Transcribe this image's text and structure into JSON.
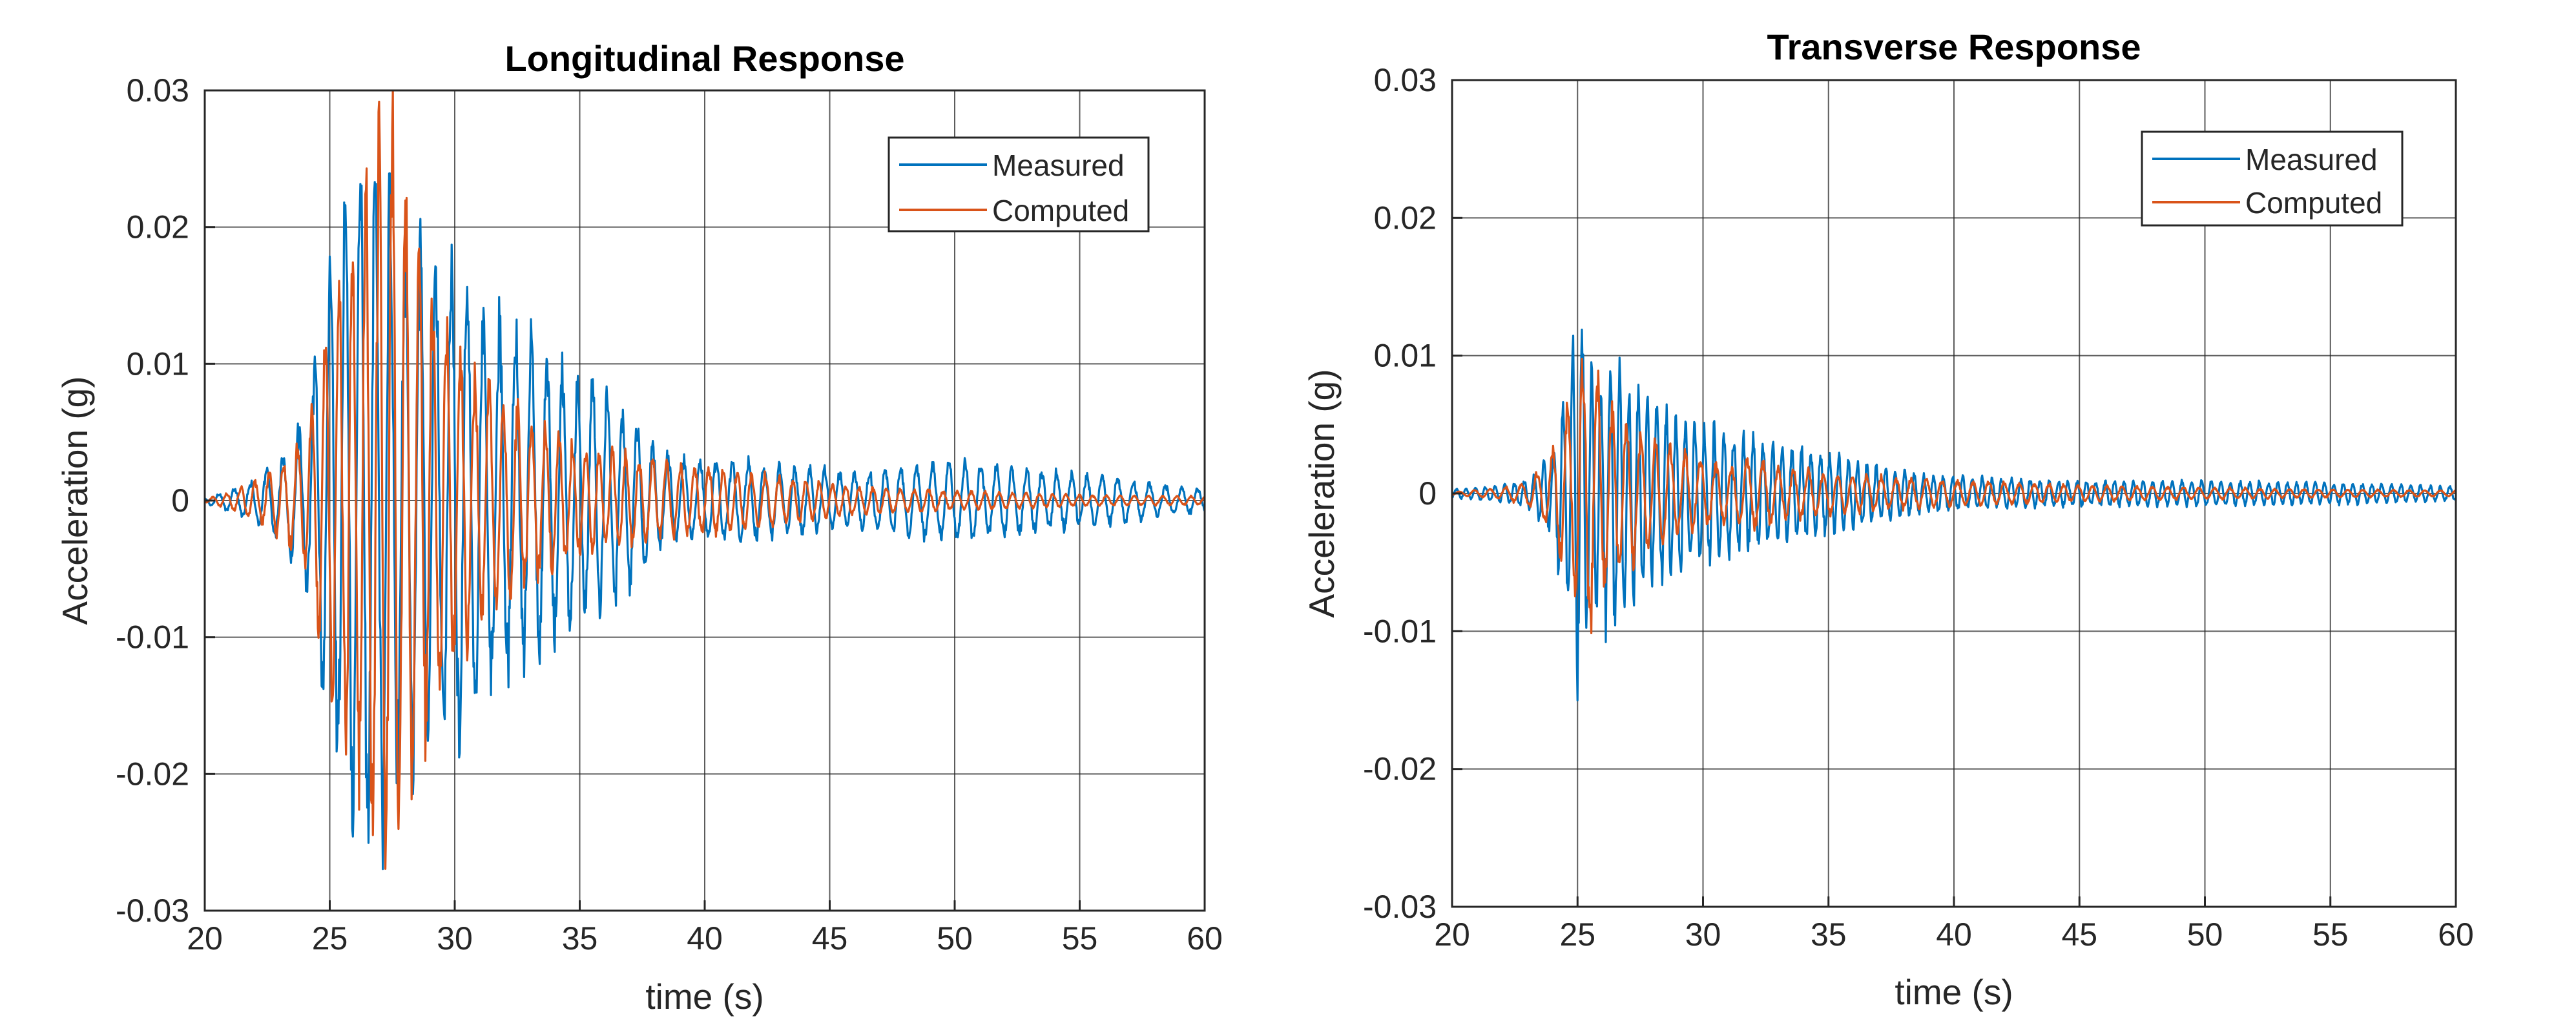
{
  "chart_data": [
    {
      "type": "line",
      "title": "Longitudinal Response",
      "xlabel": "time (s)",
      "ylabel": "Acceleration (g)",
      "xlim": [
        20,
        60
      ],
      "ylim": [
        -0.03,
        0.03
      ],
      "xticks": [
        20,
        25,
        30,
        35,
        40,
        45,
        50,
        55,
        60
      ],
      "yticks": [
        -0.03,
        -0.02,
        -0.01,
        0,
        0.01,
        0.02,
        0.03
      ],
      "xtick_labels": [
        "20",
        "25",
        "30",
        "35",
        "40",
        "45",
        "50",
        "55",
        "60"
      ],
      "ytick_labels": [
        "-0.03",
        "-0.02",
        "-0.01",
        "0",
        "0.01",
        "0.02",
        "0.03"
      ],
      "grid": true,
      "legend_position": "top-right",
      "series": [
        {
          "name": "Measured",
          "color": "#0072BD",
          "envelope": [
            [
              20,
              0.0002
            ],
            [
              21,
              0.0008
            ],
            [
              22,
              0.0015
            ],
            [
              23,
              0.003
            ],
            [
              24,
              0.006
            ],
            [
              24.5,
              0.012
            ],
            [
              25,
              0.018
            ],
            [
              26,
              0.025
            ],
            [
              27,
              0.024
            ],
            [
              28,
              0.02
            ],
            [
              29,
              0.017
            ],
            [
              30,
              0.018
            ],
            [
              31,
              0.014
            ],
            [
              32,
              0.013
            ],
            [
              33,
              0.012
            ],
            [
              34,
              0.01
            ],
            [
              35,
              0.009
            ],
            [
              36,
              0.008
            ],
            [
              37,
              0.0065
            ],
            [
              38,
              0.004
            ],
            [
              39,
              0.003
            ],
            [
              40,
              0.003
            ],
            [
              42,
              0.0028
            ],
            [
              44,
              0.0025
            ],
            [
              46,
              0.002
            ],
            [
              48,
              0.0025
            ],
            [
              50,
              0.003
            ],
            [
              52,
              0.0025
            ],
            [
              54,
              0.0022
            ],
            [
              56,
              0.0018
            ],
            [
              58,
              0.0012
            ],
            [
              60,
              0.0008
            ]
          ]
        },
        {
          "name": "Computed",
          "color": "#D95319",
          "envelope": [
            [
              20,
              0.0001
            ],
            [
              21,
              0.0006
            ],
            [
              22,
              0.0015
            ],
            [
              23,
              0.0025
            ],
            [
              24,
              0.005
            ],
            [
              24.5,
              0.009
            ],
            [
              25,
              0.014
            ],
            [
              26,
              0.02
            ],
            [
              27,
              0.027
            ],
            [
              27.5,
              0.029
            ],
            [
              28,
              0.023
            ],
            [
              29,
              0.016
            ],
            [
              30,
              0.012
            ],
            [
              31,
              0.009
            ],
            [
              32,
              0.008
            ],
            [
              33,
              0.006
            ],
            [
              34,
              0.005
            ],
            [
              35,
              0.004
            ],
            [
              36,
              0.0035
            ],
            [
              38,
              0.003
            ],
            [
              40,
              0.0025
            ],
            [
              42,
              0.002
            ],
            [
              44,
              0.0015
            ],
            [
              46,
              0.001
            ],
            [
              50,
              0.0007
            ],
            [
              55,
              0.0004
            ],
            [
              60,
              0.0003
            ]
          ]
        }
      ]
    },
    {
      "type": "line",
      "title": "Transverse Response",
      "xlabel": "time (s)",
      "ylabel": "Acceleration (g)",
      "xlim": [
        20,
        60
      ],
      "ylim": [
        -0.03,
        0.03
      ],
      "xticks": [
        20,
        25,
        30,
        35,
        40,
        45,
        50,
        55,
        60
      ],
      "yticks": [
        -0.03,
        -0.02,
        -0.01,
        0,
        0.01,
        0.02,
        0.03
      ],
      "xtick_labels": [
        "20",
        "25",
        "30",
        "35",
        "40",
        "45",
        "50",
        "55",
        "60"
      ],
      "ytick_labels": [
        "-0.03",
        "-0.02",
        "-0.01",
        "0",
        "0.01",
        "0.02",
        "0.03"
      ],
      "grid": true,
      "legend_position": "top-right",
      "series": [
        {
          "name": "Measured",
          "color": "#0072BD",
          "envelope": [
            [
              20,
              0.0003
            ],
            [
              22,
              0.0006
            ],
            [
              23,
              0.001
            ],
            [
              24,
              0.003
            ],
            [
              24.5,
              0.008
            ],
            [
              25,
              0.0135
            ],
            [
              25.5,
              0.01
            ],
            [
              26,
              0.009
            ],
            [
              26.5,
              0.011
            ],
            [
              27,
              0.008
            ],
            [
              28,
              0.007
            ],
            [
              29,
              0.006
            ],
            [
              30,
              0.005
            ],
            [
              31,
              0.0045
            ],
            [
              32,
              0.004
            ],
            [
              33,
              0.0035
            ],
            [
              34,
              0.0032
            ],
            [
              35,
              0.003
            ],
            [
              36,
              0.0025
            ],
            [
              37,
              0.002
            ],
            [
              38,
              0.0016
            ],
            [
              40,
              0.0012
            ],
            [
              45,
              0.0009
            ],
            [
              50,
              0.0009
            ],
            [
              55,
              0.0008
            ],
            [
              60,
              0.0005
            ]
          ]
        },
        {
          "name": "Computed",
          "color": "#D95319",
          "envelope": [
            [
              20,
              0.0001
            ],
            [
              22,
              0.0004
            ],
            [
              23,
              0.0008
            ],
            [
              24,
              0.003
            ],
            [
              24.5,
              0.006
            ],
            [
              25,
              0.008
            ],
            [
              25.5,
              0.011
            ],
            [
              26,
              0.007
            ],
            [
              27,
              0.005
            ],
            [
              28,
              0.004
            ],
            [
              29,
              0.003
            ],
            [
              30,
              0.0025
            ],
            [
              31,
              0.002
            ],
            [
              32,
              0.0025
            ],
            [
              33,
              0.002
            ],
            [
              34,
              0.0018
            ],
            [
              35,
              0.0015
            ],
            [
              37,
              0.0012
            ],
            [
              40,
              0.0009
            ],
            [
              45,
              0.0006
            ],
            [
              50,
              0.0004
            ],
            [
              55,
              0.0003
            ],
            [
              60,
              0.0002
            ]
          ]
        }
      ]
    }
  ]
}
